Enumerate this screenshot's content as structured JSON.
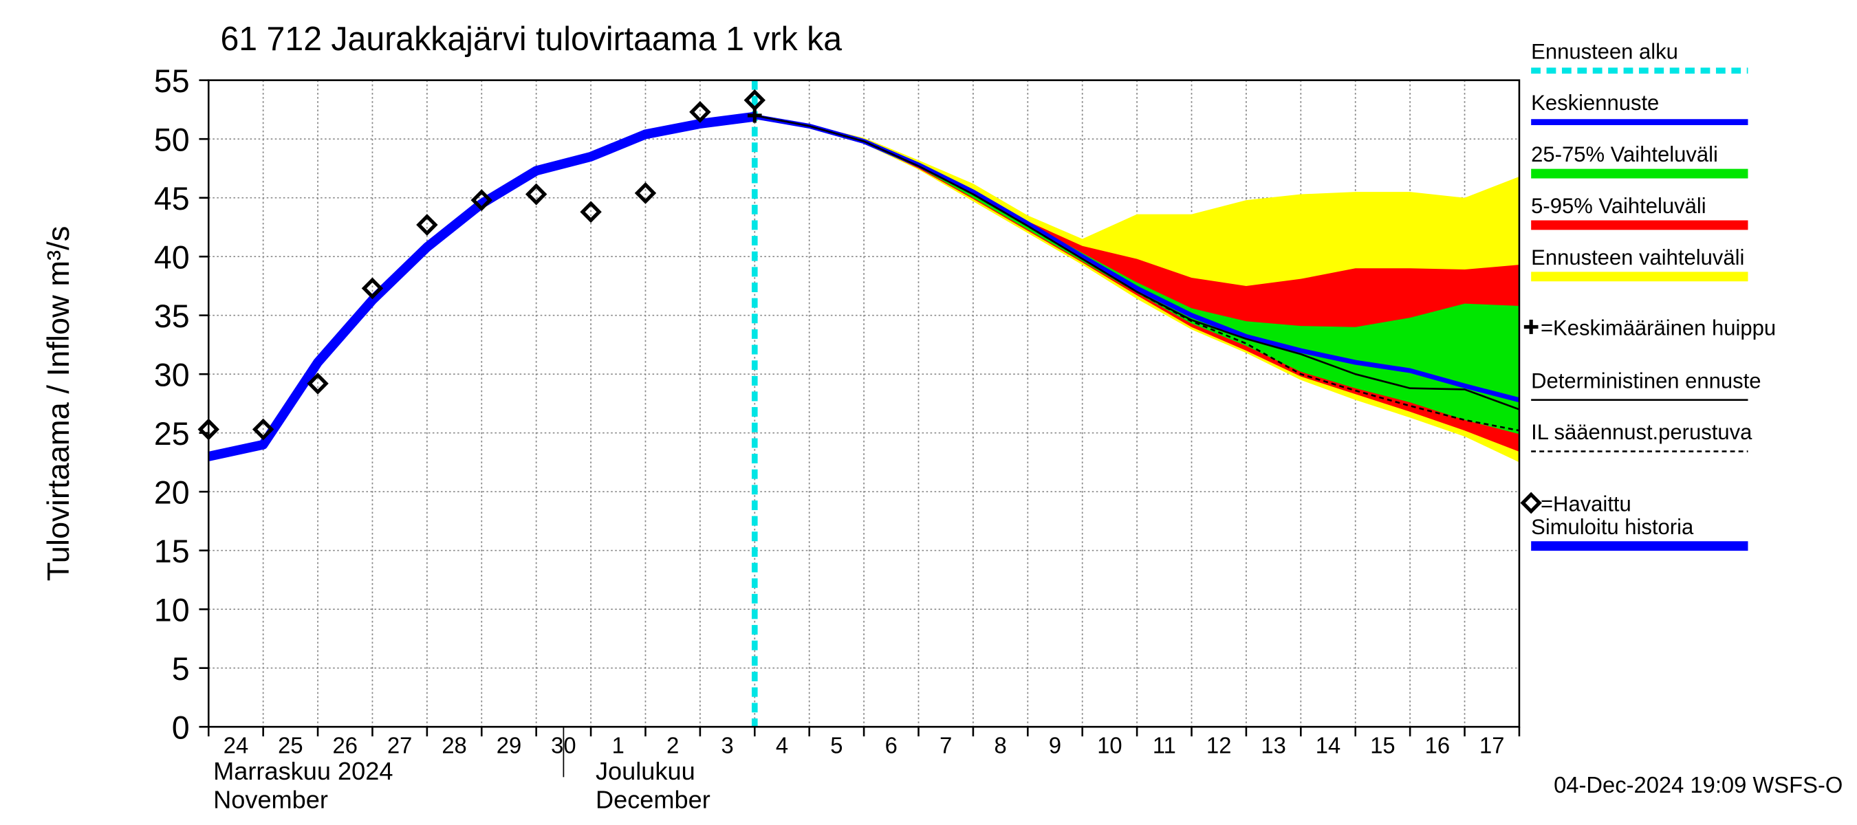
{
  "chart_data": {
    "type": "line",
    "title": "61 712 Jaurakkajärvi tulovirtaama 1 vrk ka",
    "ylabel": "Tulovirtaama / Inflow    m³/s",
    "month_labels": [
      {
        "line1": "Marraskuu 2024",
        "line2": "November",
        "at": "24"
      },
      {
        "line1": "Joulukuu",
        "line2": "December",
        "at": "1"
      }
    ],
    "footer": "04-Dec-2024 19:09 WSFS-O",
    "categories": [
      "24",
      "25",
      "26",
      "27",
      "28",
      "29",
      "30",
      "1",
      "2",
      "3",
      "4",
      "5",
      "6",
      "7",
      "8",
      "9",
      "10",
      "11",
      "12",
      "13",
      "14",
      "15",
      "16",
      "17",
      null
    ],
    "ylim": [
      0,
      55
    ],
    "yticks": [
      0,
      5,
      10,
      15,
      20,
      25,
      30,
      35,
      40,
      45,
      50,
      55
    ],
    "grid": true,
    "series": [
      {
        "name": "Ennusteen alku",
        "color": "#00e5e5",
        "kind": "vline",
        "x": "4"
      },
      {
        "name": "Keskiennuste",
        "color": "#0000ff",
        "kind": "line",
        "values": [
          null,
          null,
          null,
          null,
          null,
          null,
          null,
          null,
          null,
          null,
          51.9,
          51.1,
          49.8,
          47.8,
          45.5,
          42.8,
          40.0,
          37.3,
          35.0,
          33.2,
          32.0,
          31.0,
          30.3,
          29.0,
          27.8
        ]
      },
      {
        "name": "25-75% Vaihteluväli",
        "color": "#00e600",
        "kind": "band",
        "high": [
          null,
          null,
          null,
          null,
          null,
          null,
          null,
          null,
          null,
          null,
          52,
          51.1,
          49.8,
          47.9,
          45.6,
          42.9,
          40.3,
          37.8,
          35.6,
          34.5,
          34.1,
          34,
          34.8,
          36,
          35.8
        ],
        "low": [
          null,
          null,
          null,
          null,
          null,
          null,
          null,
          null,
          null,
          null,
          52,
          51,
          49.7,
          47.6,
          45,
          42.3,
          39.6,
          36.9,
          34.3,
          32.4,
          30.2,
          28.8,
          27.6,
          26.1,
          24.9
        ]
      },
      {
        "name": "5-95% Vaihteluväli",
        "color": "#ff0000",
        "kind": "band",
        "high": [
          null,
          null,
          null,
          null,
          null,
          null,
          null,
          null,
          null,
          null,
          52,
          51.1,
          49.9,
          48,
          45.7,
          43,
          40.9,
          39.8,
          38.2,
          37.5,
          38.1,
          39,
          39,
          38.9,
          39.3
        ],
        "low": [
          null,
          null,
          null,
          null,
          null,
          null,
          null,
          null,
          null,
          null,
          52,
          51,
          49.7,
          47.5,
          44.9,
          42.2,
          39.5,
          36.7,
          34,
          32,
          29.8,
          28.3,
          26.8,
          25.2,
          23.4
        ]
      },
      {
        "name": "Ennusteen vaihteluväli",
        "color": "#ffff00",
        "kind": "band",
        "high": [
          null,
          null,
          null,
          null,
          null,
          null,
          null,
          null,
          null,
          null,
          52,
          51.2,
          50.1,
          48.2,
          46.2,
          43.5,
          41.5,
          43.6,
          43.6,
          44.8,
          45.3,
          45.5,
          45.5,
          45,
          46.8
        ],
        "low": [
          null,
          null,
          null,
          null,
          null,
          null,
          null,
          null,
          null,
          null,
          52,
          51,
          49.6,
          47.4,
          44.7,
          42,
          39.3,
          36.4,
          33.8,
          31.8,
          29.5,
          27.8,
          26.3,
          24.7,
          22.5
        ]
      },
      {
        "name": "=Keskimääräinen huippu",
        "color": "#000000",
        "kind": "cross",
        "values": [
          null,
          null,
          null,
          null,
          null,
          null,
          null,
          null,
          null,
          null,
          52,
          null,
          null,
          null,
          null,
          null,
          null,
          null,
          null,
          null,
          null,
          null,
          null,
          null,
          null
        ]
      },
      {
        "name": "Deterministinen ennuste",
        "color": "#000000",
        "kind": "thin",
        "values": [
          null,
          null,
          null,
          null,
          null,
          null,
          null,
          null,
          null,
          null,
          52,
          51.1,
          49.8,
          47.7,
          45.3,
          42.6,
          39.8,
          37,
          34.6,
          33,
          31.7,
          30,
          28.8,
          28.7,
          27
        ]
      },
      {
        "name": "IL sääennust.perustuva",
        "color": "#000000",
        "kind": "dashed",
        "values": [
          null,
          null,
          null,
          null,
          null,
          null,
          null,
          null,
          null,
          null,
          52,
          51.1,
          49.8,
          47.7,
          45.3,
          42.6,
          39.8,
          37,
          34.5,
          32.6,
          30,
          28.6,
          27.3,
          26.1,
          25.2
        ]
      },
      {
        "name": "=Havaittu",
        "color": "#000000",
        "kind": "diamond",
        "values": [
          25.3,
          25.3,
          29.2,
          37.3,
          42.7,
          44.8,
          45.3,
          43.8,
          45.4,
          52.3,
          53.3,
          null,
          null,
          null,
          null,
          null,
          null,
          null,
          null,
          null,
          null,
          null,
          null,
          null,
          null
        ]
      },
      {
        "name": "Simuloitu historia",
        "color": "#0000ff",
        "kind": "thick",
        "values": [
          23,
          24,
          31,
          36.3,
          40.8,
          44.5,
          47.3,
          48.5,
          50.4,
          51.3,
          51.9,
          null,
          null,
          null,
          null,
          null,
          null,
          null,
          null,
          null,
          null,
          null,
          null,
          null,
          null
        ]
      }
    ]
  }
}
